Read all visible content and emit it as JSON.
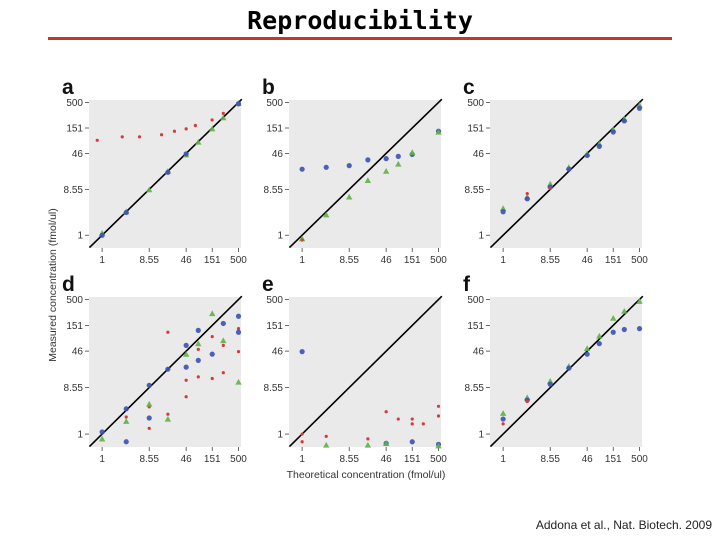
{
  "header": {
    "title": "Reproducibility"
  },
  "credit": "Addona et al., Nat. Biotech. 2009",
  "colors": {
    "rule": "#c0392b",
    "red": "#d63a3a",
    "blue": "#3b50b4",
    "green": "#5fb345",
    "line": "#000000"
  },
  "axes": {
    "ylabel": "Measured concentration (fmol/ul)",
    "xlabel": "Theoretical concentration (fmol/ul)",
    "scale": "log",
    "lim": [
      0.55,
      560
    ],
    "ticks": [
      1,
      8.55,
      46,
      151,
      500
    ],
    "tick_labels": [
      "1",
      "8.55",
      "46",
      "151",
      "500"
    ]
  },
  "chart_data": [
    {
      "type": "scatter",
      "panel": "a",
      "scale": "log",
      "diagonal": true,
      "series": [
        {
          "color": "red",
          "x": [
            0.8,
            2.5,
            5.5,
            15,
            27,
            46,
            70,
            150,
            250,
            480
          ],
          "y": [
            85,
            100,
            100,
            110,
            130,
            145,
            170,
            220,
            300,
            450
          ]
        },
        {
          "color": "green",
          "x": [
            1,
            3,
            8.55,
            20,
            46,
            80,
            151,
            250,
            500
          ],
          "y": [
            1.1,
            3,
            8.4,
            20,
            43,
            78,
            145,
            245,
            480
          ]
        },
        {
          "color": "blue",
          "x": [
            1,
            3,
            20,
            46,
            500
          ],
          "y": [
            1.0,
            2.9,
            19,
            45,
            470
          ]
        }
      ]
    },
    {
      "type": "scatter",
      "panel": "b",
      "scale": "log",
      "diagonal": true,
      "series": [
        {
          "color": "blue",
          "x": [
            1,
            3,
            8.55,
            20,
            46,
            80,
            151,
            500
          ],
          "y": [
            22,
            24,
            26,
            34,
            36,
            40,
            44,
            130
          ]
        },
        {
          "color": "green",
          "x": [
            1,
            3,
            8.55,
            20,
            46,
            80,
            151,
            500
          ],
          "y": [
            0.85,
            2.6,
            6,
            13,
            20,
            28,
            48,
            125
          ]
        },
        {
          "color": "red",
          "x": [
            1
          ],
          "y": [
            0.8
          ]
        }
      ]
    },
    {
      "type": "scatter",
      "panel": "c",
      "scale": "log",
      "diagonal": true,
      "series": [
        {
          "color": "green",
          "x": [
            1,
            3,
            8.55,
            20,
            46,
            80,
            151,
            250,
            500
          ],
          "y": [
            3.5,
            6,
            11,
            24,
            45,
            72,
            140,
            230,
            440
          ]
        },
        {
          "color": "blue",
          "x": [
            1,
            3,
            8.55,
            20,
            46,
            80,
            151,
            250,
            500
          ],
          "y": [
            3,
            5.5,
            9.5,
            22,
            42,
            64,
            125,
            210,
            380
          ]
        },
        {
          "color": "red",
          "x": [
            3,
            8.55
          ],
          "y": [
            7,
            9
          ]
        }
      ]
    },
    {
      "type": "scatter",
      "panel": "d",
      "scale": "log",
      "diagonal": true,
      "series": [
        {
          "color": "red",
          "x": [
            3,
            8.55,
            8.55,
            20,
            20,
            46,
            46,
            80,
            80,
            151,
            151,
            250,
            250,
            500,
            500
          ],
          "y": [
            2.2,
            1.3,
            3.5,
            2.5,
            110,
            12,
            5.6,
            50,
            14,
            90,
            13,
            60,
            17,
            45,
            130
          ]
        },
        {
          "color": "blue",
          "x": [
            1,
            3,
            3,
            8.55,
            8.55,
            20,
            46,
            46,
            80,
            80,
            151,
            250,
            500,
            500
          ],
          "y": [
            1.1,
            3.2,
            0.7,
            2.1,
            9.5,
            20,
            22,
            60,
            120,
            30,
            40,
            165,
            230,
            110
          ]
        },
        {
          "color": "green",
          "x": [
            1,
            3,
            8.55,
            20,
            46,
            80,
            151,
            250,
            500
          ],
          "y": [
            0.8,
            1.8,
            4,
            2,
            40,
            65,
            260,
            75,
            11
          ]
        }
      ]
    },
    {
      "type": "scatter",
      "panel": "e",
      "scale": "log",
      "diagonal": true,
      "series": [
        {
          "color": "blue",
          "x": [
            1,
            46,
            151,
            500
          ],
          "y": [
            45,
            0.65,
            0.7,
            0.62
          ]
        },
        {
          "color": "red",
          "x": [
            1,
            1,
            3,
            20,
            46,
            80,
            151,
            151,
            250,
            500,
            500
          ],
          "y": [
            1.0,
            0.7,
            0.9,
            0.8,
            2.8,
            2.0,
            1.6,
            2.0,
            1.6,
            2.3,
            3.6
          ]
        },
        {
          "color": "green",
          "x": [
            3,
            20,
            46,
            500
          ],
          "y": [
            0.6,
            0.6,
            0.65,
            0.58
          ]
        }
      ]
    },
    {
      "type": "scatter",
      "panel": "f",
      "scale": "log",
      "diagonal": true,
      "series": [
        {
          "color": "green",
          "x": [
            1,
            3,
            8.55,
            20,
            46,
            80,
            151,
            250,
            500
          ],
          "y": [
            2.6,
            5.4,
            11.5,
            23,
            52,
            92,
            210,
            290,
            460
          ]
        },
        {
          "color": "blue",
          "x": [
            1,
            3,
            8.55,
            20,
            46,
            80,
            151,
            250,
            500
          ],
          "y": [
            2.0,
            4.8,
            10,
            21,
            40,
            65,
            110,
            125,
            130
          ]
        },
        {
          "color": "red",
          "x": [
            1,
            3
          ],
          "y": [
            1.6,
            4.5
          ]
        }
      ]
    }
  ]
}
